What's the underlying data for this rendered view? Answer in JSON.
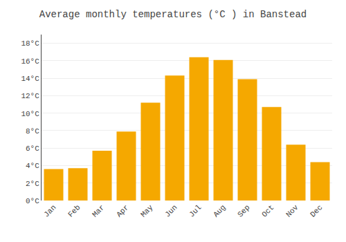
{
  "chart_data": {
    "type": "bar",
    "title": "Average monthly temperatures (°C ) in Banstead",
    "categories": [
      "Jan",
      "Feb",
      "Mar",
      "Apr",
      "May",
      "Jun",
      "Jul",
      "Aug",
      "Sep",
      "Oct",
      "Nov",
      "Dec"
    ],
    "values": [
      3.6,
      3.7,
      5.7,
      7.9,
      11.2,
      14.3,
      16.4,
      16.1,
      13.9,
      10.7,
      6.4,
      4.4
    ],
    "color": "#F5A800",
    "ylim": [
      0,
      19
    ],
    "yticks": [
      {
        "value": 0,
        "label": "0°C"
      },
      {
        "value": 2,
        "label": "2°C"
      },
      {
        "value": 4,
        "label": "4°C"
      },
      {
        "value": 6,
        "label": "6°C"
      },
      {
        "value": 8,
        "label": "8°C"
      },
      {
        "value": 10,
        "label": "10°C"
      },
      {
        "value": 12,
        "label": "12°C"
      },
      {
        "value": 14,
        "label": "14°C"
      },
      {
        "value": 16,
        "label": "16°C"
      },
      {
        "value": 18,
        "label": "18°C"
      }
    ],
    "grid": true
  }
}
